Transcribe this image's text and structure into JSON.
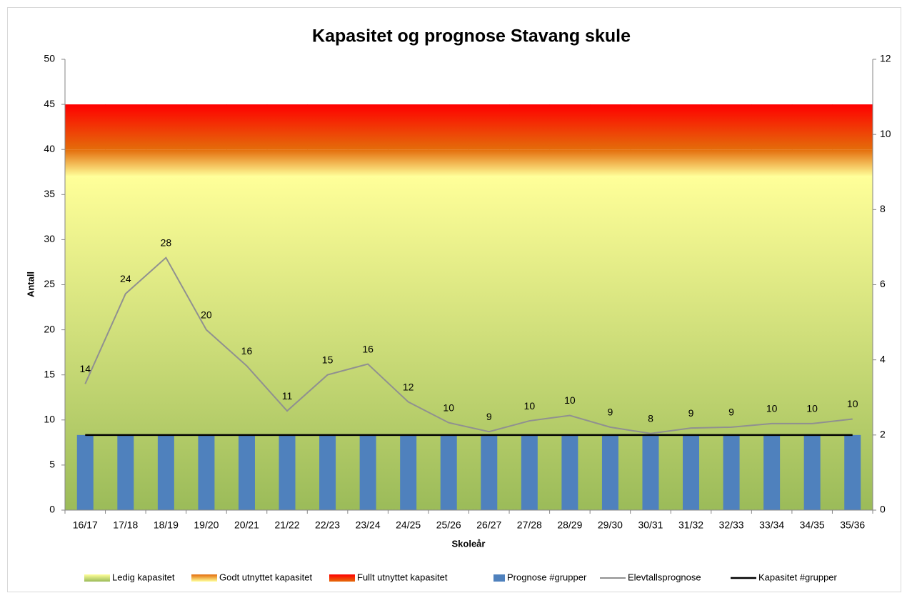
{
  "chart_data": {
    "type": "combo",
    "title": "Kapasitet og prognose Stavang skule",
    "y_label": "Antall",
    "x_label": "Skoleår",
    "categories": [
      "16/17",
      "17/18",
      "18/19",
      "19/20",
      "20/21",
      "21/22",
      "22/23",
      "23/24",
      "24/25",
      "25/26",
      "26/27",
      "27/28",
      "28/29",
      "29/30",
      "30/31",
      "31/32",
      "32/33",
      "33/34",
      "34/35",
      "35/36"
    ],
    "ylim": [
      0,
      50
    ],
    "yticks": [
      0,
      5,
      10,
      15,
      20,
      25,
      30,
      35,
      40,
      45,
      50
    ],
    "y2lim": [
      0,
      12
    ],
    "y2ticks": [
      0,
      2,
      4,
      6,
      8,
      10,
      12
    ],
    "legend": "bottom",
    "series": [
      {
        "name": "Ledig kapasitet",
        "type": "area",
        "color": [
          "#9bbb59",
          "#ffff99"
        ],
        "values": [
          37,
          37,
          37,
          37,
          37,
          37,
          37,
          37,
          37,
          37,
          37,
          37,
          37,
          37,
          37,
          37,
          37,
          37,
          37,
          37
        ]
      },
      {
        "name": "Godt utnyttet kapasitet",
        "type": "area",
        "color": [
          "#ffff99",
          "#e46c0a"
        ],
        "values": [
          3,
          3,
          3,
          3,
          3,
          3,
          3,
          3,
          3,
          3,
          3,
          3,
          3,
          3,
          3,
          3,
          3,
          3,
          3,
          3
        ]
      },
      {
        "name": "Fullt utnyttet kapasitet",
        "type": "area",
        "color": [
          "#e46c0a",
          "#ff0000"
        ],
        "values": [
          5,
          5,
          5,
          5,
          5,
          5,
          5,
          5,
          5,
          5,
          5,
          5,
          5,
          5,
          5,
          5,
          5,
          5,
          5,
          5
        ]
      },
      {
        "name": "Prognose #grupper",
        "type": "bar",
        "axis": "y2",
        "color": "#4f81bd",
        "values": [
          2,
          2,
          2,
          2,
          2,
          2,
          2,
          2,
          2,
          2,
          2,
          2,
          2,
          2,
          2,
          2,
          2,
          2,
          2,
          2
        ]
      },
      {
        "name": "Elevtallsprognose",
        "type": "line",
        "color": "#909090",
        "values": [
          14,
          24,
          28,
          20,
          16,
          11,
          15,
          16.2,
          12,
          9.7,
          8.7,
          9.9,
          10.5,
          9.2,
          8.5,
          9.1,
          9.2,
          9.6,
          9.6,
          10.1
        ],
        "value_labels": [
          "14",
          "24",
          "28",
          "20",
          "16",
          "11",
          "15",
          "16",
          "12",
          "10",
          "9",
          "10",
          "10",
          "9",
          "8",
          "9",
          "9",
          "10",
          "10",
          "10"
        ]
      },
      {
        "name": "Kapasitet #grupper",
        "type": "line",
        "axis": "y2",
        "color": "#000000",
        "values": [
          2,
          2,
          2,
          2,
          2,
          2,
          2,
          2,
          2,
          2,
          2,
          2,
          2,
          2,
          2,
          2,
          2,
          2,
          2,
          2
        ]
      }
    ]
  }
}
